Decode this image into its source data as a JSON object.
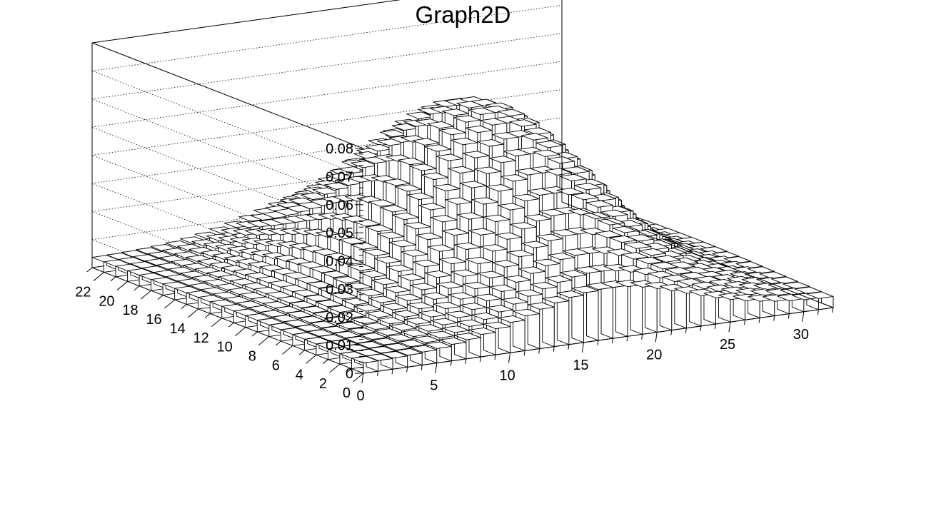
{
  "chart_data": {
    "type": "lego",
    "title": "Graph2D",
    "xlabel": "",
    "ylabel": "",
    "zlabel": "",
    "x": {
      "range": [
        0,
        32
      ],
      "ticks": [
        0,
        5,
        10,
        15,
        20,
        25,
        30
      ],
      "tick_labels": [
        "0",
        "5",
        "10",
        "15",
        "20",
        "25",
        "30"
      ]
    },
    "y": {
      "range": [
        0,
        23
      ],
      "ticks": [
        0,
        2,
        4,
        6,
        8,
        10,
        12,
        14,
        16,
        18,
        20,
        22
      ],
      "tick_labels": [
        "0",
        "2",
        "4",
        "6",
        "8",
        "10",
        "12",
        "14",
        "16",
        "18",
        "20",
        "22"
      ]
    },
    "z": {
      "range": [
        0,
        0.08
      ],
      "ticks": [
        0,
        0.01,
        0.02,
        0.03,
        0.04,
        0.05,
        0.06,
        0.07,
        0.08
      ],
      "tick_labels": [
        "0",
        "0.01",
        "0.02",
        "0.03",
        "0.04",
        "0.05",
        "0.06",
        "0.07",
        "0.08"
      ]
    },
    "grid": true,
    "surface": {
      "function": "gaussian",
      "peak": 0.065,
      "center_x": 17,
      "center_y": 11.5,
      "sigma_x": 5.5,
      "sigma_y": 6.5,
      "baseline": 0.0035,
      "bins_x": 32,
      "bins_y": 23
    }
  }
}
